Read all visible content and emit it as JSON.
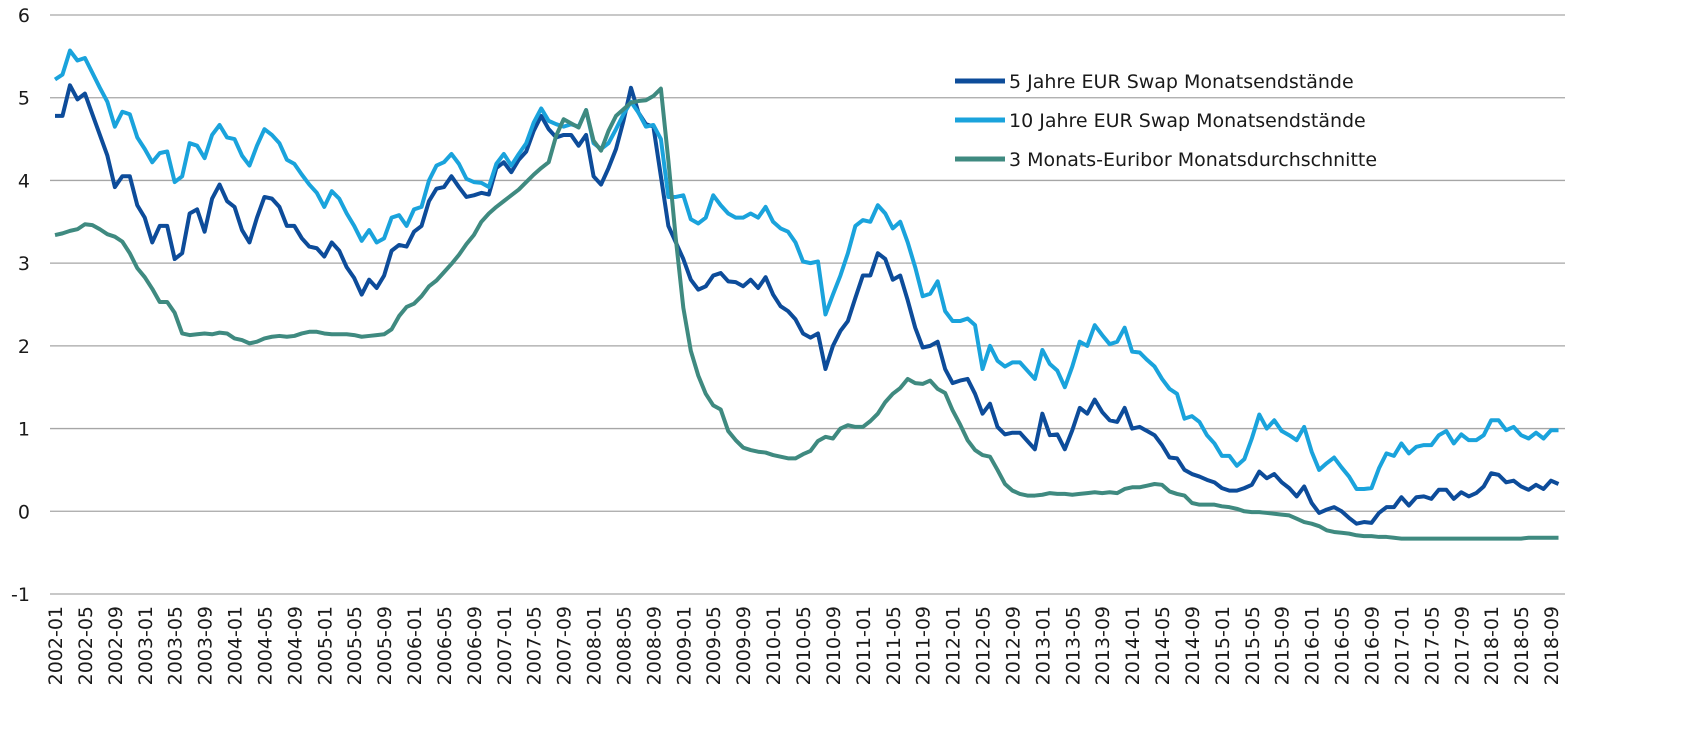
{
  "chart_data": {
    "type": "line",
    "categories": [
      "2002-01",
      null,
      null,
      null,
      "2002-05",
      null,
      null,
      null,
      "2002-09",
      null,
      null,
      null,
      "2003-01",
      null,
      null,
      null,
      "2003-05",
      null,
      null,
      null,
      "2003-09",
      null,
      null,
      null,
      "2004-01",
      null,
      null,
      null,
      "2004-05",
      null,
      null,
      null,
      "2004-09",
      null,
      null,
      null,
      "2005-01",
      null,
      null,
      null,
      "2005-05",
      null,
      null,
      null,
      "2005-09",
      null,
      null,
      null,
      "2006-01",
      null,
      null,
      null,
      "2006-05",
      null,
      null,
      null,
      "2006-09",
      null,
      null,
      null,
      "2007-01",
      null,
      null,
      null,
      "2007-05",
      null,
      null,
      null,
      "2007-09",
      null,
      null,
      null,
      "2008-01",
      null,
      null,
      null,
      "2008-05",
      null,
      null,
      null,
      "2008-09",
      null,
      null,
      null,
      "2009-01",
      null,
      null,
      null,
      "2009-05",
      null,
      null,
      null,
      "2009-09",
      null,
      null,
      null,
      "2010-01",
      null,
      null,
      null,
      "2010-05",
      null,
      null,
      null,
      "2010-09",
      null,
      null,
      null,
      "2011-01",
      null,
      null,
      null,
      "2011-05",
      null,
      null,
      null,
      "2011-09",
      null,
      null,
      null,
      "2012-01",
      null,
      null,
      null,
      "2012-05",
      null,
      null,
      null,
      "2012-09",
      null,
      null,
      null,
      "2013-01",
      null,
      null,
      null,
      "2013-05",
      null,
      null,
      null,
      "2013-09",
      null,
      null,
      null,
      "2014-01",
      null,
      null,
      null,
      "2014-05",
      null,
      null,
      null,
      "2014-09",
      null,
      null,
      null,
      "2015-01",
      null,
      null,
      null,
      "2015-05",
      null,
      null,
      null,
      "2015-09",
      null,
      null,
      null,
      "2016-01",
      null,
      null,
      null,
      "2016-05",
      null,
      null,
      null,
      "2016-09",
      null,
      null,
      null,
      "2017-01",
      null,
      null,
      null,
      "2017-05",
      null,
      null,
      null,
      "2017-09",
      null,
      null,
      null,
      "2018-01",
      null,
      null,
      null,
      "2018-05",
      null,
      null,
      null,
      "2018-09",
      null
    ],
    "series": [
      {
        "name": "5 Jahre EUR Swap Monatsendstände",
        "color": "#0d4c9a",
        "values": [
          4.78,
          4.78,
          5.15,
          4.98,
          5.05,
          4.8,
          4.55,
          4.3,
          3.92,
          4.05,
          4.05,
          3.7,
          3.55,
          3.25,
          3.45,
          3.45,
          3.05,
          3.12,
          3.6,
          3.65,
          3.38,
          3.78,
          3.95,
          3.75,
          3.68,
          3.4,
          3.25,
          3.55,
          3.8,
          3.78,
          3.68,
          3.45,
          3.45,
          3.3,
          3.2,
          3.18,
          3.08,
          3.25,
          3.15,
          2.95,
          2.82,
          2.62,
          2.8,
          2.7,
          2.85,
          3.15,
          3.22,
          3.2,
          3.38,
          3.45,
          3.75,
          3.9,
          3.92,
          4.05,
          3.92,
          3.8,
          3.82,
          3.85,
          3.83,
          4.15,
          4.22,
          4.1,
          4.25,
          4.35,
          4.6,
          4.78,
          4.62,
          4.52,
          4.55,
          4.55,
          4.42,
          4.55,
          4.05,
          3.95,
          4.15,
          4.38,
          4.72,
          5.12,
          4.82,
          4.68,
          4.65,
          4.05,
          3.45,
          3.25,
          3.05,
          2.8,
          2.68,
          2.72,
          2.85,
          2.88,
          2.78,
          2.77,
          2.72,
          2.8,
          2.7,
          2.83,
          2.62,
          2.48,
          2.42,
          2.32,
          2.15,
          2.1,
          2.15,
          1.72,
          2.0,
          2.18,
          2.3,
          2.58,
          2.85,
          2.85,
          3.12,
          3.05,
          2.8,
          2.85,
          2.55,
          2.22,
          1.98,
          2.0,
          2.05,
          1.72,
          1.55,
          1.58,
          1.6,
          1.42,
          1.18,
          1.3,
          1.02,
          0.93,
          0.95,
          0.95,
          0.85,
          0.75,
          1.18,
          0.92,
          0.93,
          0.75,
          0.98,
          1.25,
          1.18,
          1.35,
          1.2,
          1.1,
          1.08,
          1.25,
          1.0,
          1.02,
          0.97,
          0.92,
          0.8,
          0.65,
          0.64,
          0.5,
          0.45,
          0.42,
          0.38,
          0.35,
          0.28,
          0.25,
          0.25,
          0.28,
          0.32,
          0.48,
          0.4,
          0.45,
          0.35,
          0.28,
          0.18,
          0.3,
          0.1,
          -0.02,
          0.02,
          0.05,
          0.0,
          -0.08,
          -0.15,
          -0.13,
          -0.14,
          -0.02,
          0.05,
          0.05,
          0.17,
          0.07,
          0.17,
          0.18,
          0.15,
          0.26,
          0.26,
          0.15,
          0.23,
          0.18,
          0.22,
          0.3,
          0.46,
          0.44,
          0.35,
          0.37,
          0.3,
          0.26,
          0.32,
          0.27,
          0.37,
          0.33
        ]
      },
      {
        "name": "10 Jahre EUR Swap Monatsendstände",
        "color": "#1aa3dc",
        "values": [
          5.22,
          5.28,
          5.57,
          5.45,
          5.48,
          5.3,
          5.12,
          4.95,
          4.65,
          4.83,
          4.8,
          4.52,
          4.38,
          4.22,
          4.33,
          4.35,
          3.98,
          4.05,
          4.45,
          4.42,
          4.27,
          4.55,
          4.67,
          4.52,
          4.5,
          4.3,
          4.18,
          4.42,
          4.62,
          4.55,
          4.45,
          4.25,
          4.2,
          4.07,
          3.95,
          3.85,
          3.68,
          3.87,
          3.78,
          3.6,
          3.45,
          3.27,
          3.4,
          3.25,
          3.3,
          3.55,
          3.58,
          3.45,
          3.65,
          3.68,
          4.0,
          4.18,
          4.22,
          4.32,
          4.2,
          4.02,
          3.98,
          3.97,
          3.92,
          4.2,
          4.32,
          4.18,
          4.32,
          4.45,
          4.7,
          4.87,
          4.72,
          4.68,
          4.65,
          4.68,
          4.65,
          4.85,
          4.45,
          4.38,
          4.45,
          4.62,
          4.8,
          4.95,
          4.82,
          4.65,
          4.67,
          4.5,
          3.8,
          3.8,
          3.82,
          3.53,
          3.48,
          3.55,
          3.82,
          3.7,
          3.6,
          3.55,
          3.55,
          3.6,
          3.55,
          3.68,
          3.5,
          3.42,
          3.38,
          3.25,
          3.02,
          3.0,
          3.02,
          2.38,
          2.62,
          2.85,
          3.12,
          3.45,
          3.52,
          3.5,
          3.7,
          3.6,
          3.42,
          3.5,
          3.25,
          2.95,
          2.6,
          2.63,
          2.78,
          2.42,
          2.3,
          2.3,
          2.33,
          2.25,
          1.72,
          2.0,
          1.82,
          1.75,
          1.8,
          1.8,
          1.7,
          1.6,
          1.95,
          1.78,
          1.7,
          1.5,
          1.75,
          2.05,
          2.0,
          2.25,
          2.13,
          2.02,
          2.05,
          2.22,
          1.93,
          1.92,
          1.83,
          1.75,
          1.6,
          1.48,
          1.42,
          1.12,
          1.15,
          1.08,
          0.92,
          0.82,
          0.67,
          0.67,
          0.55,
          0.63,
          0.88,
          1.17,
          1.0,
          1.1,
          0.97,
          0.92,
          0.86,
          1.02,
          0.72,
          0.5,
          0.58,
          0.65,
          0.53,
          0.42,
          0.27,
          0.27,
          0.28,
          0.52,
          0.7,
          0.67,
          0.82,
          0.7,
          0.78,
          0.8,
          0.8,
          0.92,
          0.97,
          0.82,
          0.93,
          0.86,
          0.86,
          0.92,
          1.1,
          1.1,
          0.98,
          1.02,
          0.92,
          0.88,
          0.95,
          0.88,
          0.98,
          0.98
        ]
      },
      {
        "name": "3 Monats-Euribor Monatsdurchschnitte",
        "color": "#3f8a80",
        "values": [
          3.34,
          3.36,
          3.39,
          3.41,
          3.47,
          3.46,
          3.41,
          3.35,
          3.32,
          3.26,
          3.12,
          2.94,
          2.83,
          2.69,
          2.53,
          2.53,
          2.4,
          2.15,
          2.13,
          2.14,
          2.15,
          2.14,
          2.16,
          2.15,
          2.09,
          2.07,
          2.03,
          2.05,
          2.09,
          2.11,
          2.12,
          2.11,
          2.12,
          2.15,
          2.17,
          2.17,
          2.15,
          2.14,
          2.14,
          2.14,
          2.13,
          2.11,
          2.12,
          2.13,
          2.14,
          2.2,
          2.36,
          2.47,
          2.51,
          2.6,
          2.72,
          2.79,
          2.89,
          2.99,
          3.1,
          3.23,
          3.34,
          3.5,
          3.6,
          3.68,
          3.75,
          3.82,
          3.89,
          3.98,
          4.07,
          4.15,
          4.22,
          4.54,
          4.74,
          4.69,
          4.64,
          4.85,
          4.48,
          4.36,
          4.6,
          4.78,
          4.86,
          4.94,
          4.96,
          4.97,
          5.02,
          5.11,
          4.24,
          3.29,
          2.46,
          1.94,
          1.64,
          1.42,
          1.28,
          1.23,
          0.97,
          0.86,
          0.77,
          0.74,
          0.72,
          0.71,
          0.68,
          0.66,
          0.64,
          0.64,
          0.69,
          0.73,
          0.85,
          0.9,
          0.88,
          1.0,
          1.04,
          1.02,
          1.02,
          1.09,
          1.18,
          1.32,
          1.42,
          1.49,
          1.6,
          1.55,
          1.54,
          1.58,
          1.48,
          1.43,
          1.22,
          1.05,
          0.86,
          0.74,
          0.68,
          0.66,
          0.5,
          0.33,
          0.25,
          0.21,
          0.19,
          0.19,
          0.2,
          0.22,
          0.21,
          0.21,
          0.2,
          0.21,
          0.22,
          0.23,
          0.22,
          0.23,
          0.22,
          0.27,
          0.29,
          0.29,
          0.31,
          0.33,
          0.32,
          0.24,
          0.21,
          0.19,
          0.1,
          0.08,
          0.08,
          0.08,
          0.06,
          0.05,
          0.03,
          0.0,
          -0.01,
          -0.01,
          -0.02,
          -0.03,
          -0.04,
          -0.05,
          -0.09,
          -0.13,
          -0.15,
          -0.18,
          -0.23,
          -0.25,
          -0.26,
          -0.27,
          -0.29,
          -0.3,
          -0.3,
          -0.31,
          -0.31,
          -0.32,
          -0.33,
          -0.33,
          -0.33,
          -0.33,
          -0.33,
          -0.33,
          -0.33,
          -0.33,
          -0.33,
          -0.33,
          -0.33,
          -0.33,
          -0.33,
          -0.33,
          -0.33,
          -0.33,
          -0.33,
          -0.32,
          -0.32,
          -0.32,
          -0.32,
          -0.32
        ]
      }
    ],
    "ylim": [
      -1,
      6
    ],
    "yticks": [
      -1,
      0,
      1,
      2,
      3,
      4,
      5,
      6
    ],
    "grid": true
  }
}
